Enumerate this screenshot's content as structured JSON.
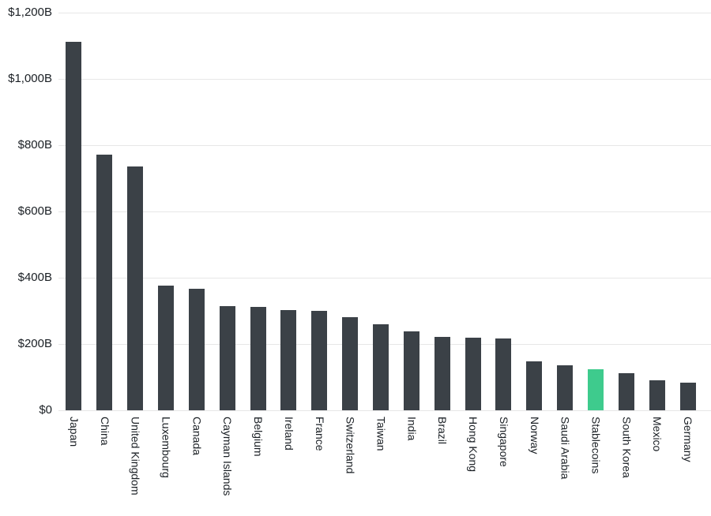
{
  "chart_data": {
    "type": "bar",
    "title": "",
    "xlabel": "",
    "ylabel": "",
    "categories": [
      "Japan",
      "China",
      "United Kingdom",
      "Luxembourg",
      "Canada",
      "Cayman Islands",
      "Belgium",
      "Ireland",
      "France",
      "Switzerland",
      "Taiwan",
      "India",
      "Brazil",
      "Hong Kong",
      "Singapore",
      "Norway",
      "Saudi Arabia",
      "Stablecoins",
      "South Korea",
      "Mexico",
      "Germany"
    ],
    "values": [
      1113,
      771,
      735,
      377,
      367,
      314,
      312,
      302,
      300,
      282,
      260,
      238,
      222,
      220,
      216,
      148,
      136,
      125,
      113,
      91,
      84
    ],
    "value_unit": "USD billions",
    "highlight_category": "Stablecoins",
    "ylim": [
      0,
      1200
    ],
    "ytick_values": [
      0,
      200,
      400,
      600,
      800,
      1000,
      1200
    ],
    "ytick_labels": [
      "$0",
      "$200B",
      "$400B",
      "$600B",
      "$800B",
      "$1,000B",
      "$1,200B"
    ],
    "grid": true,
    "legend": false,
    "colors": {
      "bar": "#3b4147",
      "highlight": "#3ecb8d",
      "gridline": "#e7e7e7",
      "tick_text": "#1a1f24",
      "background": "#ffffff"
    }
  }
}
